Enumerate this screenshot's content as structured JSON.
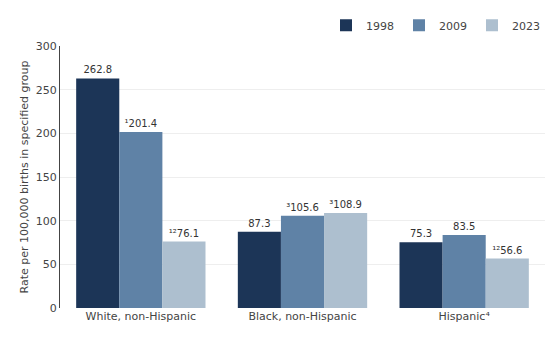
{
  "chart_data": {
    "type": "bar",
    "categories": [
      "White, non-Hispanic",
      "Black, non-Hispanic",
      "Hispanic⁴"
    ],
    "series": [
      {
        "name": "1998",
        "color": "#1c3557",
        "values": [
          262.8,
          87.3,
          75.3
        ],
        "value_labels": [
          "262.8",
          "87.3",
          "75.3"
        ]
      },
      {
        "name": "2009",
        "color": "#5f82a6",
        "values": [
          201.4,
          105.6,
          83.5
        ],
        "value_labels": [
          "¹201.4",
          "³105.6",
          "83.5"
        ]
      },
      {
        "name": "2023",
        "color": "#adbfcf",
        "values": [
          76.1,
          108.9,
          56.6
        ],
        "value_labels": [
          "¹²76.1",
          "³108.9",
          "¹²56.6"
        ]
      }
    ],
    "ylabel": "Rate per 100,000 births in specified group",
    "ylim": [
      0,
      300
    ],
    "yticks": [
      0,
      50,
      100,
      150,
      200,
      250,
      300
    ],
    "grid": true,
    "legend": "upper right",
    "data_labels": true
  }
}
